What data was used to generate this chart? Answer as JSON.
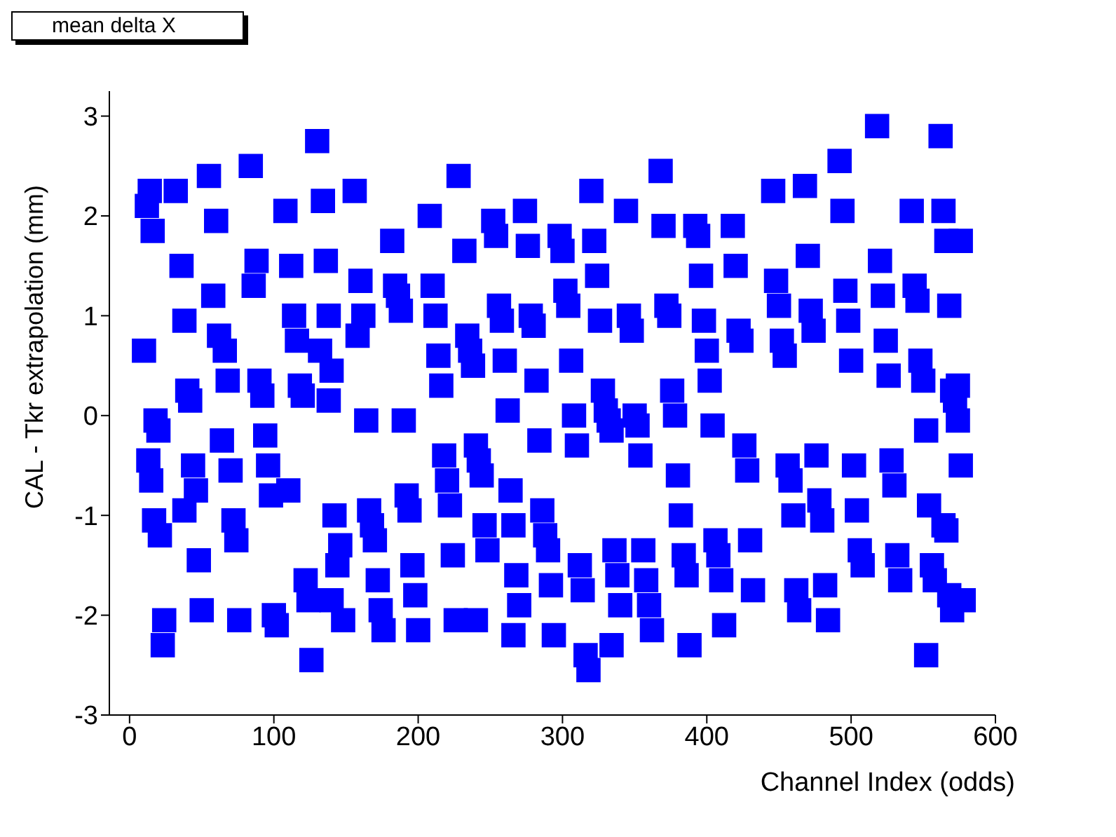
{
  "chart_data": {
    "type": "scatter",
    "title": "mean delta X",
    "xlabel": "Channel Index (odds)",
    "ylabel": "CAL - Tkr extrapolation (mm)",
    "xlim": [
      -14,
      600
    ],
    "ylim": [
      -3,
      3.25
    ],
    "xticks": [
      0,
      100,
      200,
      300,
      400,
      500,
      600
    ],
    "yticks": [
      -3,
      -2,
      -1,
      0,
      1,
      2,
      3
    ],
    "marker": "square",
    "grid": false,
    "legend": false,
    "series": [
      {
        "color": "#0000ff",
        "x": [
          12,
          14,
          16,
          10,
          18,
          20,
          13,
          15,
          17,
          21,
          24,
          23,
          32,
          36,
          38,
          40,
          42,
          44,
          46,
          38,
          48,
          50,
          55,
          60,
          58,
          62,
          66,
          68,
          64,
          70,
          72,
          74,
          76,
          84,
          88,
          86,
          90,
          92,
          94,
          96,
          98,
          100,
          102,
          108,
          112,
          114,
          116,
          118,
          120,
          110,
          122,
          124,
          126,
          130,
          134,
          136,
          138,
          132,
          140,
          138,
          142,
          146,
          144,
          148,
          140,
          156,
          160,
          162,
          158,
          164,
          166,
          168,
          170,
          172,
          174,
          176,
          182,
          184,
          186,
          188,
          190,
          192,
          194,
          196,
          198,
          200,
          208,
          210,
          212,
          214,
          216,
          218,
          220,
          222,
          224,
          226,
          228,
          232,
          234,
          236,
          238,
          240,
          242,
          244,
          246,
          248,
          240,
          252,
          254,
          256,
          258,
          260,
          262,
          264,
          266,
          268,
          270,
          266,
          274,
          276,
          278,
          280,
          282,
          284,
          286,
          288,
          290,
          292,
          294,
          298,
          300,
          302,
          304,
          306,
          308,
          310,
          312,
          314,
          316,
          318,
          320,
          322,
          324,
          326,
          328,
          330,
          332,
          334,
          336,
          338,
          340,
          334,
          344,
          346,
          348,
          350,
          352,
          354,
          356,
          358,
          360,
          362,
          368,
          370,
          372,
          374,
          376,
          378,
          380,
          382,
          384,
          386,
          388,
          392,
          394,
          396,
          398,
          400,
          402,
          404,
          406,
          408,
          410,
          412,
          418,
          420,
          422,
          424,
          426,
          428,
          430,
          432,
          446,
          448,
          450,
          452,
          454,
          456,
          458,
          460,
          462,
          464,
          468,
          470,
          472,
          474,
          476,
          478,
          480,
          482,
          484,
          492,
          494,
          496,
          498,
          500,
          502,
          504,
          506,
          508,
          518,
          520,
          522,
          524,
          526,
          528,
          530,
          532,
          534,
          542,
          544,
          546,
          548,
          550,
          552,
          554,
          556,
          558,
          552,
          562,
          564,
          566,
          568,
          570,
          572,
          574,
          564,
          566,
          568,
          570,
          574,
          576,
          578,
          576
        ],
        "values": [
          2.1,
          2.25,
          1.85,
          0.65,
          -0.05,
          -0.15,
          -0.45,
          -0.65,
          -1.05,
          -1.2,
          -2.05,
          -2.3,
          2.25,
          1.5,
          0.95,
          0.25,
          0.15,
          -0.5,
          -0.75,
          -0.95,
          -1.45,
          -1.95,
          2.4,
          1.95,
          1.2,
          0.8,
          0.65,
          0.35,
          -0.25,
          -0.55,
          -1.05,
          -1.25,
          -2.05,
          2.5,
          1.55,
          1.3,
          0.35,
          0.2,
          -0.2,
          -0.5,
          -0.8,
          -2.0,
          -2.1,
          2.05,
          1.5,
          1.0,
          0.75,
          0.3,
          0.2,
          -0.75,
          -1.65,
          -1.85,
          -2.45,
          2.75,
          2.15,
          1.55,
          1.0,
          0.65,
          0.45,
          0.15,
          -1.0,
          -1.3,
          -1.5,
          -2.05,
          -1.85,
          2.25,
          1.35,
          1.0,
          0.8,
          -0.05,
          -0.95,
          -1.1,
          -1.25,
          -1.65,
          -1.95,
          -2.15,
          1.75,
          1.3,
          1.2,
          1.05,
          -0.05,
          -0.8,
          -0.95,
          -1.5,
          -1.8,
          -2.15,
          2.0,
          1.3,
          1.0,
          0.6,
          0.3,
          -0.4,
          -0.65,
          -0.9,
          -1.4,
          -2.05,
          2.4,
          1.65,
          0.8,
          0.65,
          0.5,
          -0.3,
          -0.45,
          -0.6,
          -1.1,
          -1.35,
          -2.05,
          1.95,
          1.8,
          1.1,
          0.95,
          0.55,
          0.05,
          -0.75,
          -1.1,
          -1.6,
          -1.9,
          -2.2,
          2.05,
          1.7,
          1.0,
          0.9,
          0.35,
          -0.25,
          -0.95,
          -1.2,
          -1.35,
          -1.7,
          -2.2,
          1.8,
          1.65,
          1.25,
          1.1,
          0.55,
          0.0,
          -0.3,
          -1.5,
          -1.75,
          -2.4,
          -2.55,
          2.25,
          1.75,
          1.4,
          0.95,
          0.25,
          0.05,
          -0.05,
          -0.15,
          -1.35,
          -1.6,
          -1.9,
          -2.3,
          2.05,
          1.0,
          0.85,
          0.0,
          -0.1,
          -0.4,
          -1.35,
          -1.65,
          -1.9,
          -2.15,
          2.45,
          1.9,
          1.1,
          1.0,
          0.25,
          0.0,
          -0.6,
          -1.0,
          -1.4,
          -1.6,
          -2.3,
          1.9,
          1.8,
          1.4,
          0.95,
          0.65,
          0.35,
          -0.1,
          -1.25,
          -1.4,
          -1.65,
          -2.1,
          1.9,
          1.5,
          0.85,
          0.75,
          -0.3,
          -0.55,
          -1.25,
          -1.75,
          2.25,
          1.35,
          1.1,
          0.75,
          0.6,
          -0.5,
          -0.65,
          -1.0,
          -1.75,
          -1.95,
          2.3,
          1.6,
          1.05,
          0.85,
          -0.4,
          -0.85,
          -1.05,
          -1.7,
          -2.05,
          2.55,
          2.05,
          1.25,
          0.95,
          0.55,
          -0.5,
          -0.95,
          -1.35,
          -1.5,
          2.9,
          1.55,
          1.2,
          0.75,
          0.4,
          -0.45,
          -0.7,
          -1.4,
          -1.65,
          2.05,
          1.3,
          1.15,
          0.55,
          0.35,
          -0.15,
          -0.9,
          -1.5,
          -1.65,
          -2.4,
          2.8,
          2.05,
          1.75,
          1.1,
          0.25,
          0.15,
          -0.05,
          -1.1,
          -1.15,
          -1.8,
          -1.95,
          0.3,
          -0.5,
          -1.85,
          1.75
        ]
      }
    ]
  }
}
